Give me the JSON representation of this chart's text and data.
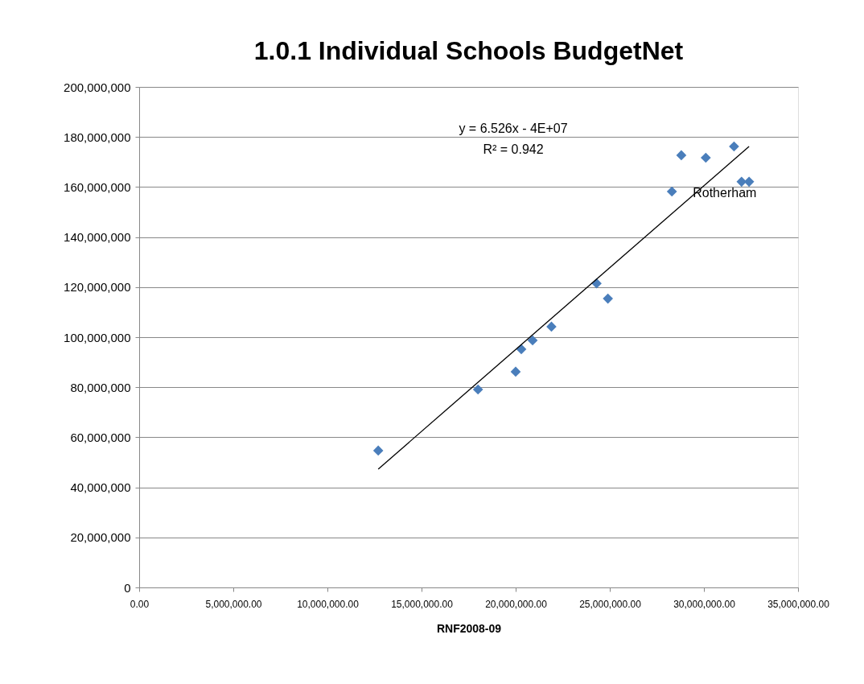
{
  "chart_data": {
    "type": "scatter",
    "title": "1.0.1 Individual Schools BudgetNet",
    "xlabel": "RNF2008-09",
    "xlim": [
      0,
      35000000
    ],
    "ylim": [
      0,
      200000000
    ],
    "xticks": [
      {
        "value": 0,
        "label": "0.00"
      },
      {
        "value": 5000000,
        "label": "5,000,000.00"
      },
      {
        "value": 10000000,
        "label": "10,000,000.00"
      },
      {
        "value": 15000000,
        "label": "15,000,000.00"
      },
      {
        "value": 20000000,
        "label": "20,000,000.00"
      },
      {
        "value": 25000000,
        "label": "25,000,000.00"
      },
      {
        "value": 30000000,
        "label": "30,000,000.00"
      },
      {
        "value": 35000000,
        "label": "35,000,000.00"
      }
    ],
    "yticks": [
      {
        "value": 0,
        "label": "0"
      },
      {
        "value": 20000000,
        "label": "20,000,000"
      },
      {
        "value": 40000000,
        "label": "40,000,000"
      },
      {
        "value": 60000000,
        "label": "60,000,000"
      },
      {
        "value": 80000000,
        "label": "80,000,000"
      },
      {
        "value": 100000000,
        "label": "100,000,000"
      },
      {
        "value": 120000000,
        "label": "120,000,000"
      },
      {
        "value": 140000000,
        "label": "140,000,000"
      },
      {
        "value": 160000000,
        "label": "160,000,000"
      },
      {
        "value": 180000000,
        "label": "180,000,000"
      },
      {
        "value": 200000000,
        "label": "200,000,000"
      }
    ],
    "grid": "y",
    "series": [
      {
        "color": "#4a7ebb",
        "marker": "diamond",
        "x": [
          12700000,
          18000000,
          20000000,
          20300000,
          20900000,
          21900000,
          24300000,
          24900000,
          28300000,
          28800000,
          30100000,
          31600000,
          32000000,
          32400000
        ],
        "values": [
          54700000,
          79100000,
          86200000,
          95200000,
          98700000,
          104200000,
          121500000,
          115400000,
          158200000,
          172700000,
          171700000,
          176200000,
          162100000,
          162100000
        ]
      },
      {
        "type": "line",
        "color": "#000000",
        "marker": "none",
        "line_style": "solid",
        "x": [
          12700000,
          32400000
        ],
        "values": [
          47300000,
          176200000
        ]
      }
    ],
    "annotations": [
      "y = 6.526x - 4E+07",
      "R² = 0.942",
      {
        "text": "Rotherham",
        "x": 28300000,
        "y": 158200000
      }
    ]
  }
}
